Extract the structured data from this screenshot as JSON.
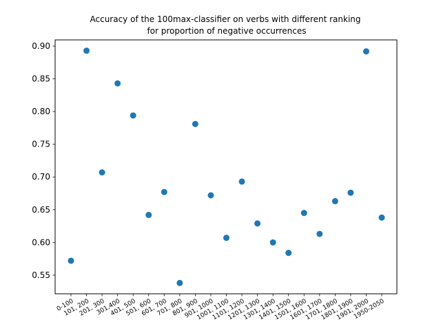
{
  "chart_data": {
    "type": "scatter",
    "title_lines": [
      "Accuracy of the 100max-classifier on verbs with different ranking",
      "for proportion of negative occurrences"
    ],
    "xlabel": "",
    "ylabel": "",
    "categories": [
      "0-100",
      "101, 200",
      "201, 300",
      "301,400",
      "401, 500",
      "501, 600",
      "601, 700",
      "701, 800",
      "801, 900",
      "901, 1000",
      "1001, 1100",
      "1101, 1200",
      "1201, 1300",
      "1301, 1400",
      "1401, 1500",
      "1501, 1600",
      "1601, 1700",
      "1701, 1800",
      "1801, 1900",
      "1901, 2000",
      "1950-2050"
    ],
    "values": [
      0.572,
      0.893,
      0.707,
      0.843,
      0.794,
      0.642,
      0.677,
      0.538,
      0.781,
      0.672,
      0.607,
      0.693,
      0.629,
      0.6,
      0.584,
      0.645,
      0.613,
      0.663,
      0.676,
      0.892,
      0.638
    ],
    "ylim": [
      0.5215,
      0.9095
    ],
    "yticks": [
      {
        "value": 0.55,
        "label": "0.55"
      },
      {
        "value": 0.6,
        "label": "0.60"
      },
      {
        "value": 0.65,
        "label": "0.65"
      },
      {
        "value": 0.7,
        "label": "0.70"
      },
      {
        "value": 0.75,
        "label": "0.75"
      },
      {
        "value": 0.8,
        "label": "0.80"
      },
      {
        "value": 0.85,
        "label": "0.85"
      },
      {
        "value": 0.9,
        "label": "0.90"
      }
    ],
    "grid": false,
    "legend": "none",
    "marker_color": "#1f77b4"
  }
}
